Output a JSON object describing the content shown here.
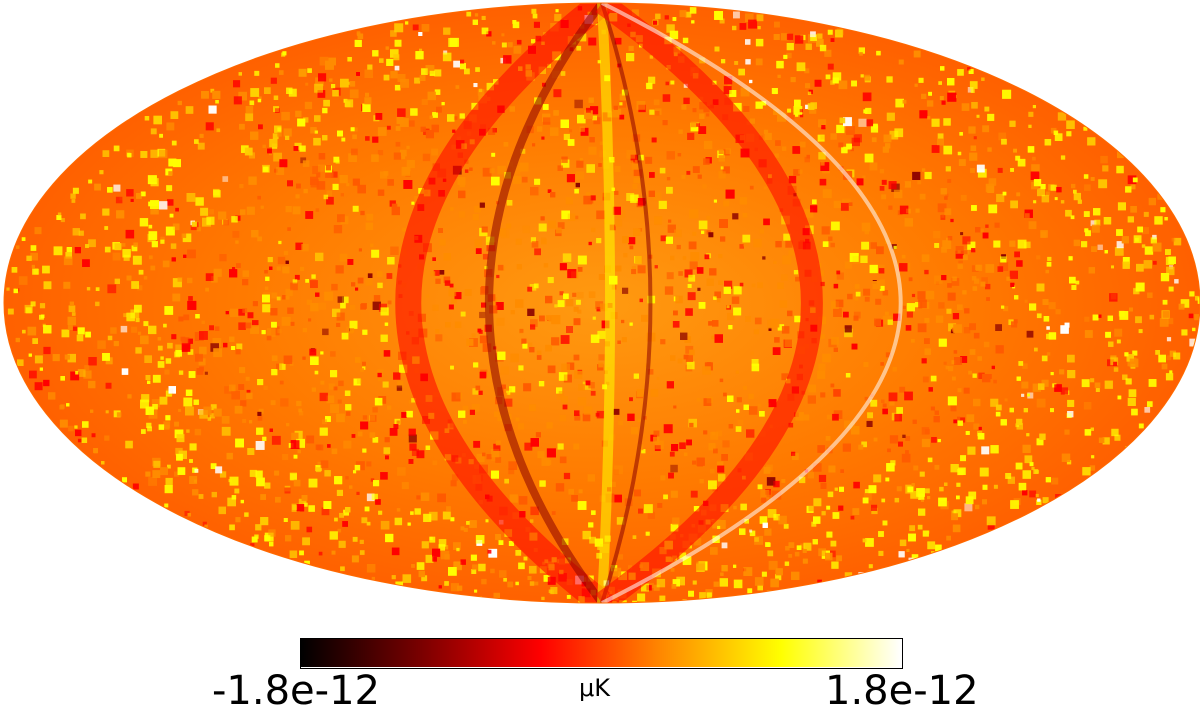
{
  "map": {
    "projection": "mollweide",
    "colormap": "hot",
    "background_color": "#ff6a00",
    "colors": {
      "black": "#000000",
      "dark_red": "#8b0000",
      "red": "#ff0000",
      "orange": "#ff8c00",
      "yellow": "#ffff00",
      "white": "#ffffff"
    }
  },
  "colorbar": {
    "min_label": "-1.8e-12",
    "max_label": "1.8e-12",
    "unit": "μK",
    "min_value": -1.8e-12,
    "max_value": 1.8e-12
  }
}
